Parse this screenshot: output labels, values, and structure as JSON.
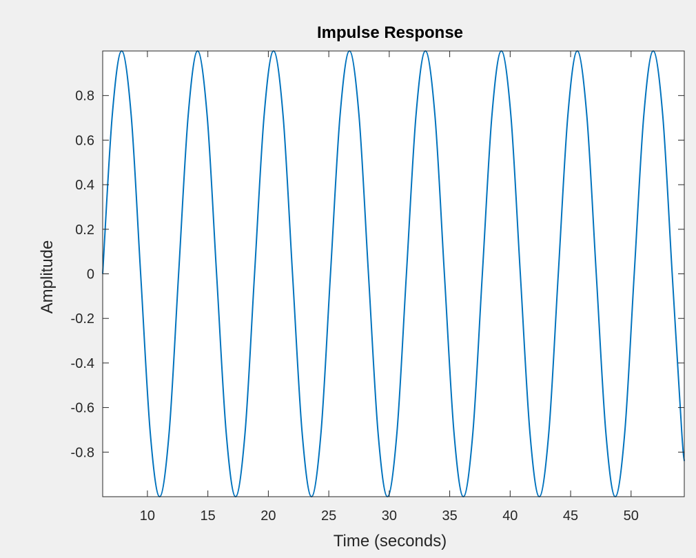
{
  "chart_data": {
    "type": "line",
    "title": "Impulse Response",
    "xlabel": "Time (seconds)",
    "ylabel": "Amplitude",
    "xlim": [
      6.3,
      54.4
    ],
    "ylim": [
      -1.0,
      1.0
    ],
    "x_ticks": [
      10,
      15,
      20,
      25,
      30,
      35,
      40,
      45,
      50
    ],
    "y_ticks": [
      0.8,
      0.6,
      0.4,
      0.2,
      0,
      -0.2,
      -0.4,
      -0.6,
      -0.8
    ],
    "x_tick_labels": [
      "10",
      "15",
      "20",
      "25",
      "30",
      "35",
      "40",
      "45",
      "50"
    ],
    "y_tick_labels": [
      "0.8",
      "0.6",
      "0.4",
      "0.2",
      "0",
      "-0.2",
      "-0.4",
      "-0.6",
      "-0.8"
    ],
    "grid": false,
    "series": [
      {
        "color": "#0072bd",
        "x": [
          6.3,
          7.09,
          7.87,
          8.66,
          9.44,
          10.23,
          11.01,
          11.8,
          12.58,
          13.37,
          14.15,
          14.94,
          15.72,
          16.51,
          17.29,
          18.08,
          18.86,
          19.65,
          20.43,
          21.22,
          22.0,
          22.79,
          23.57,
          24.36,
          25.14,
          25.93,
          26.71,
          27.5,
          28.28,
          29.07,
          29.85,
          30.64,
          31.42,
          32.21,
          32.99,
          33.78,
          34.56,
          35.35,
          36.13,
          36.92,
          37.7,
          38.49,
          39.27,
          40.06,
          40.84,
          41.63,
          42.41,
          43.2,
          43.98,
          44.77,
          45.55,
          46.34,
          47.12,
          47.91,
          48.69,
          49.48,
          50.26,
          51.05,
          51.83,
          52.62,
          53.4,
          54.19,
          54.4
        ],
        "y": [
          0.0,
          0.71,
          1.0,
          0.71,
          0.0,
          -0.71,
          -1.0,
          -0.71,
          0.0,
          0.71,
          1.0,
          0.71,
          0.0,
          -0.71,
          -1.0,
          -0.71,
          0.0,
          0.71,
          1.0,
          0.71,
          0.0,
          -0.71,
          -1.0,
          -0.71,
          0.0,
          0.71,
          1.0,
          0.71,
          0.0,
          -0.71,
          -1.0,
          -0.71,
          0.0,
          0.71,
          1.0,
          0.71,
          0.0,
          -0.71,
          -1.0,
          -0.71,
          0.0,
          0.71,
          1.0,
          0.71,
          0.0,
          -0.71,
          -1.0,
          -0.71,
          0.0,
          0.71,
          1.0,
          0.71,
          0.0,
          -0.71,
          -1.0,
          -0.71,
          0.0,
          0.71,
          1.0,
          0.71,
          0.0,
          -0.71,
          -0.84
        ]
      }
    ]
  }
}
